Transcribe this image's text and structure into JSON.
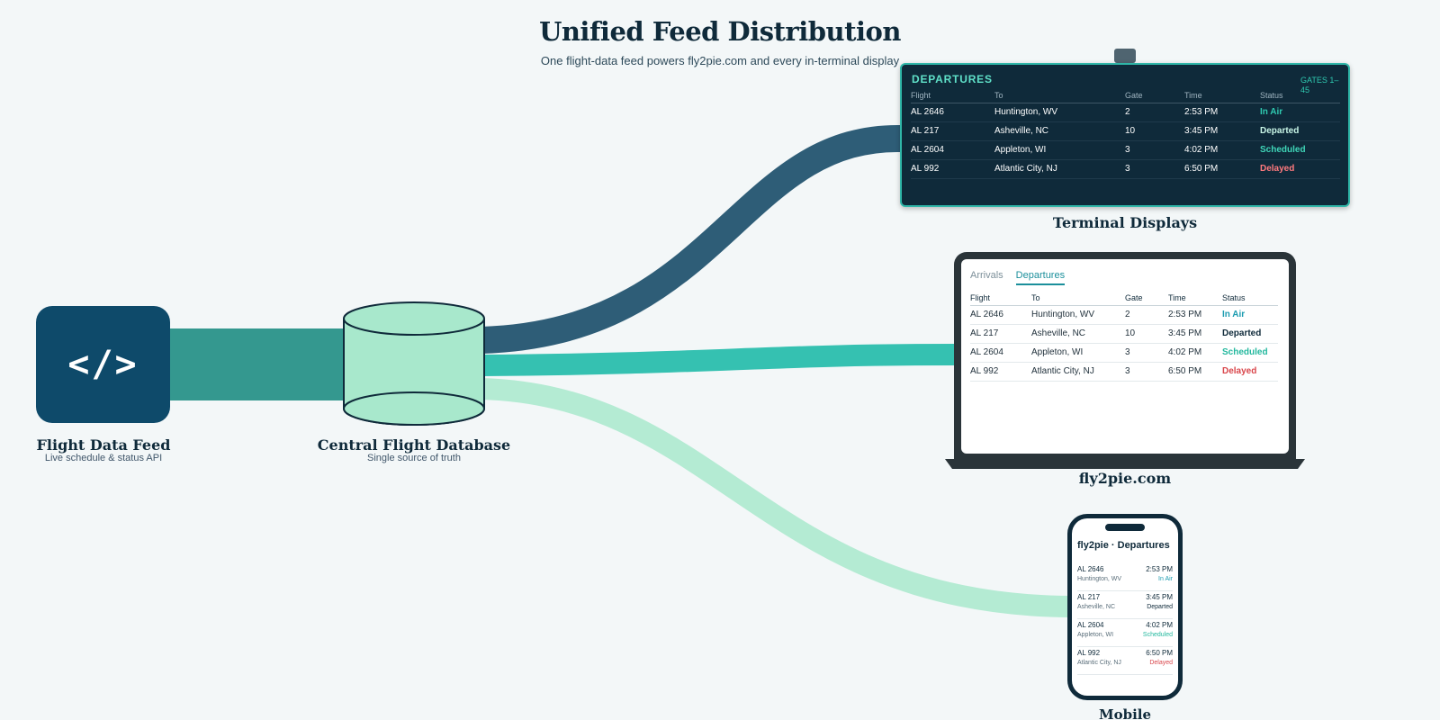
{
  "title": "Unified Feed Distribution",
  "subtitle": "One flight-data feed powers fly2pie.com and every in-terminal display",
  "colors": {
    "navy": "#0f2a3a",
    "feed_blue": "#0e4a6a",
    "teal_flow": "#34988f",
    "terminal_flow": "#2e5d77",
    "web_flow": "#35c1b1",
    "mobile_flow": "#b4ebd3",
    "db_fill": "#a8e8cc",
    "status_in_air": "#1fb5c9",
    "status_departed": "#0f2a3a",
    "status_scheduled": "#23b89e",
    "status_delayed": "#d9464b"
  },
  "nodes": {
    "feed": {
      "icon": "code-icon",
      "icon_text": "</>",
      "title": "Flight Data Feed",
      "subtitle": "Live schedule & status API"
    },
    "database": {
      "icon": "database-cylinder",
      "title": "Central Flight Database",
      "subtitle": "Single source of truth"
    }
  },
  "terminal": {
    "heading": "DEPARTURES",
    "gates": "GATES 1–45",
    "columns": [
      "Flight",
      "To",
      "Gate",
      "Time",
      "Status"
    ],
    "rows": [
      [
        "AL 2646",
        "Huntington, WV",
        "2",
        "2:53 PM",
        "In Air"
      ],
      [
        "AL 217",
        "Asheville, NC",
        "10",
        "3:45 PM",
        "Departed"
      ],
      [
        "AL 2604",
        "Appleton, WI",
        "3",
        "4:02 PM",
        "Scheduled"
      ],
      [
        "AL 992",
        "Atlantic City, NJ",
        "3",
        "6:50 PM",
        "Delayed"
      ]
    ],
    "label": "Terminal Displays"
  },
  "website": {
    "tabs": [
      "Arrivals",
      "Departures"
    ],
    "active_tab": "Departures",
    "columns": [
      "Flight",
      "To",
      "Gate",
      "Time",
      "Status"
    ],
    "rows": [
      [
        "AL 2646",
        "Huntington, WV",
        "2",
        "2:53 PM",
        "In Air"
      ],
      [
        "AL 217",
        "Asheville, NC",
        "10",
        "3:45 PM",
        "Departed"
      ],
      [
        "AL 2604",
        "Appleton, WI",
        "3",
        "4:02 PM",
        "Scheduled"
      ],
      [
        "AL 992",
        "Atlantic City, NJ",
        "3",
        "6:50 PM",
        "Delayed"
      ]
    ],
    "label": "fly2pie.com"
  },
  "mobile": {
    "title": "fly2pie · Departures",
    "rows": [
      {
        "flight": "AL 2646",
        "dest": "Huntington, WV",
        "time": "2:53 PM",
        "status": "In Air"
      },
      {
        "flight": "AL 217",
        "dest": "Asheville, NC",
        "time": "3:45 PM",
        "status": "Departed"
      },
      {
        "flight": "AL 2604",
        "dest": "Appleton, WI",
        "time": "4:02 PM",
        "status": "Scheduled"
      },
      {
        "flight": "AL 992",
        "dest": "Atlantic City, NJ",
        "time": "6:50 PM",
        "status": "Delayed"
      }
    ],
    "label": "Mobile"
  }
}
